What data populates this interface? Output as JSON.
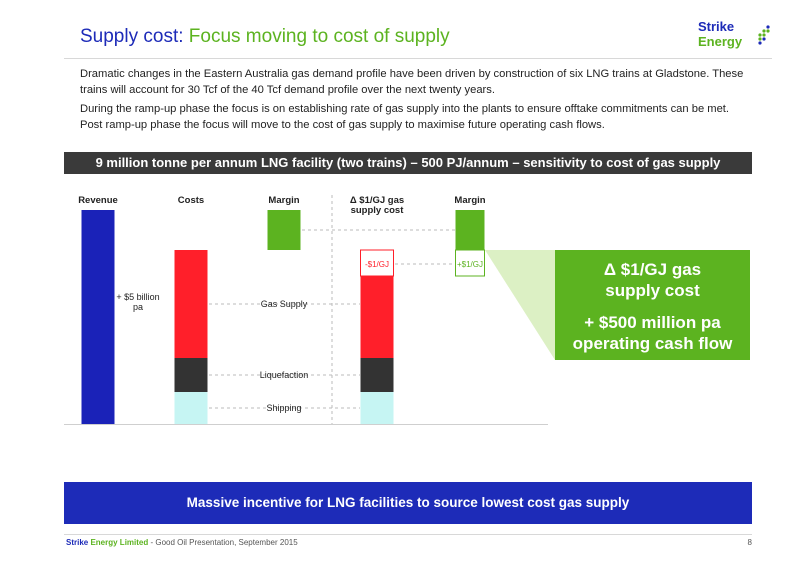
{
  "title": {
    "part1": "Supply cost: ",
    "part2": "Focus moving to cost of supply"
  },
  "logo": {
    "line1": "Strike",
    "line2": "Energy"
  },
  "intro": {
    "p1": "Dramatic changes in the Eastern Australia gas demand profile have been driven by construction of six LNG trains at Gladstone. These trains will account for 30 Tcf of the 40 Tcf demand profile over the next twenty years.",
    "p2": "During the ramp-up phase the focus is on establishing rate of gas supply into the plants to ensure offtake commitments can be met. Post ramp-up phase the focus will move to the cost of gas supply to maximise future operating cash flows."
  },
  "banner": "9 million tonne per annum LNG facility (two trains) – 500 PJ/annum – sensitivity to cost of gas supply",
  "chart_data": {
    "type": "bar",
    "columns": [
      "Revenue",
      "Costs",
      "Margin",
      "Δ $1/GJ gas supply cost",
      "Margin"
    ],
    "column_header_lines": [
      [
        "Revenue"
      ],
      [
        "Costs"
      ],
      [
        "Margin"
      ],
      [
        "Δ $1/GJ gas",
        "supply cost"
      ],
      [
        "Margin"
      ]
    ],
    "cost_segments": [
      "Gas Supply",
      "Liquefaction",
      "Shipping"
    ],
    "annotations": {
      "revenue": [
        "+ $5 billion",
        "pa"
      ],
      "delta_cost": "-$1/GJ",
      "delta_margin": "+$1/GJ"
    },
    "colors": {
      "revenue": "#1a22b8",
      "gas_supply": "#ff1f2a",
      "liquefaction": "#333333",
      "shipping": "#c6f5f3",
      "margin": "#5cb320"
    }
  },
  "callout": {
    "line1": "Δ $1/GJ gas",
    "line2": "supply cost",
    "line3": "+ $500 million pa",
    "line4": "operating cash flow"
  },
  "bottom_banner": "Massive incentive for LNG facilities to source lowest cost gas supply",
  "footer": {
    "strike": "Strike",
    "energy": " Energy Limited",
    "rest": " - Good Oil Presentation, September 2015"
  },
  "page_number": "8"
}
